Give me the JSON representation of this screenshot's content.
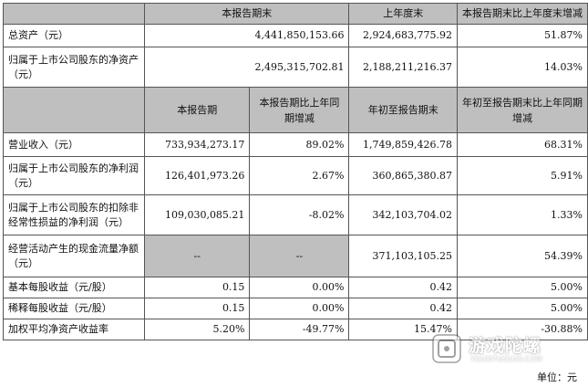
{
  "header1": {
    "col1": "本报告期末",
    "col2": "上年度末",
    "col3": "本报告期末比上年度末增减"
  },
  "balance_rows": [
    {
      "label": "总资产（元）",
      "current": "4,441,850,153.66",
      "prior": "2,924,683,775.92",
      "change": "51.87%"
    },
    {
      "label": "归属于上市公司股东的净资产（元）",
      "current": "2,495,315,702.81",
      "prior": "2,188,211,216.37",
      "change": "14.03%"
    }
  ],
  "header2": {
    "col1": "本报告期",
    "col2": "本报告期比上年同期增减",
    "col3": "年初至报告期末",
    "col4": "年初至报告期末比上年同期增减"
  },
  "income_rows": [
    {
      "label": "营业收入（元）",
      "period": "733,934,273.17",
      "period_change": "89.02%",
      "ytd": "1,749,859,426.78",
      "ytd_change": "68.31%"
    },
    {
      "label": "归属于上市公司股东的净利润（元）",
      "period": "126,401,973.26",
      "period_change": "2.67%",
      "ytd": "360,865,380.87",
      "ytd_change": "5.91%"
    },
    {
      "label": "归属于上市公司股东的扣除非经常性损益的净利润（元）",
      "period": "109,030,085.21",
      "period_change": "-8.02%",
      "ytd": "342,103,704.02",
      "ytd_change": "1.33%"
    },
    {
      "label": "经营活动产生的现金流量净额（元）",
      "period": "--",
      "period_change": "--",
      "ytd": "371,103,105.25",
      "ytd_change": "54.39%"
    },
    {
      "label": "基本每股收益（元/股）",
      "period": "0.15",
      "period_change": "0.00%",
      "ytd": "0.42",
      "ytd_change": "5.00%"
    },
    {
      "label": "稀释每股收益（元/股）",
      "period": "0.15",
      "period_change": "0.00%",
      "ytd": "0.42",
      "ytd_change": "5.00%"
    },
    {
      "label": "加权平均净资产收益率",
      "period": "5.20%",
      "period_change": "-49.77%",
      "ytd": "15.47%",
      "ytd_change": "-30.88%"
    }
  ],
  "unit_note": "单位：元",
  "watermark": {
    "cn": "游戏陀螺",
    "en": "YOUXITUOLUO.COM"
  }
}
